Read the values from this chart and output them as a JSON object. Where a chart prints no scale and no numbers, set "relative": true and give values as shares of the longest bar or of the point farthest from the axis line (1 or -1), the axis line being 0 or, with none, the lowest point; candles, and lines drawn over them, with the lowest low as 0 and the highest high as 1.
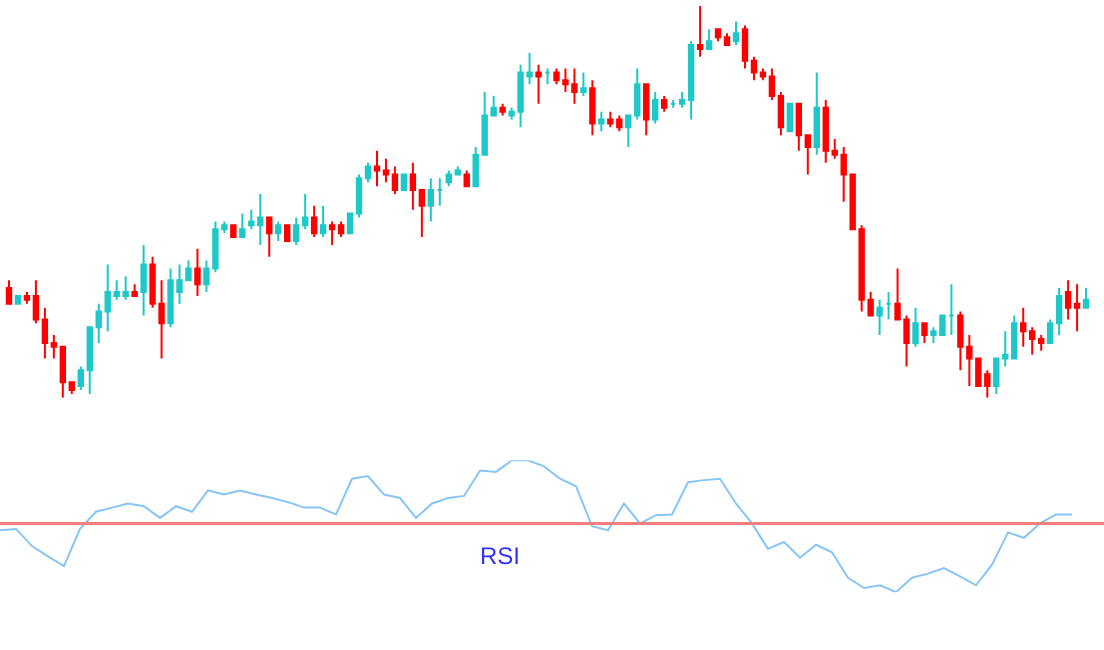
{
  "chart_data": [
    {
      "type": "candlestick",
      "relative": true,
      "categories": [
        null,
        null,
        null,
        null,
        null,
        null,
        null,
        null,
        null,
        null,
        null,
        null,
        null,
        null,
        null,
        null,
        null,
        null,
        null,
        null,
        null,
        null,
        null,
        null,
        null,
        null,
        null,
        null,
        null,
        null,
        null,
        null,
        null,
        null,
        null,
        null,
        null,
        null,
        null,
        null,
        null,
        null,
        null,
        null,
        null,
        null,
        null,
        null,
        null,
        null,
        null,
        null,
        null,
        null,
        null,
        null,
        null,
        null,
        null,
        null,
        null,
        null,
        null,
        null,
        null,
        null,
        null,
        null,
        null,
        null,
        null,
        null,
        null,
        null,
        null,
        null,
        null,
        null,
        null,
        null,
        null,
        null,
        null,
        null,
        null,
        null,
        null,
        null,
        null,
        null,
        null,
        null,
        null,
        null,
        null,
        null,
        null,
        null,
        null,
        null,
        null,
        null,
        null,
        null,
        null,
        null,
        null,
        null,
        null,
        null,
        null,
        null,
        null,
        null,
        null,
        null,
        null,
        null,
        null,
        null,
        null
      ],
      "ohlc": [
        [
          0.28,
          0.3,
          0.24,
          0.24
        ],
        [
          0.24,
          0.26,
          0.24,
          0.26
        ],
        [
          0.26,
          0.27,
          0.24,
          0.25
        ],
        [
          0.26,
          0.3,
          0.19,
          0.2
        ],
        [
          0.2,
          0.23,
          0.1,
          0.14
        ],
        [
          0.14,
          0.16,
          0.1,
          0.13
        ],
        [
          0.13,
          0.13,
          0,
          0.04
        ],
        [
          0.04,
          0.04,
          0.01,
          0.02
        ],
        [
          0.03,
          0.08,
          0.02,
          0.07
        ],
        [
          0.07,
          0.18,
          0.01,
          0.18
        ],
        [
          0.18,
          0.24,
          0.14,
          0.22
        ],
        [
          0.22,
          0.34,
          0.17,
          0.27
        ],
        [
          0.26,
          0.3,
          0.25,
          0.27
        ],
        [
          0.26,
          0.31,
          0.25,
          0.27
        ],
        [
          0.27,
          0.29,
          0.26,
          0.26
        ],
        [
          0.27,
          0.39,
          0.21,
          0.34
        ],
        [
          0.34,
          0.36,
          0.23,
          0.24
        ],
        [
          0.24,
          0.3,
          0.1,
          0.19
        ],
        [
          0.19,
          0.33,
          0.18,
          0.3
        ],
        [
          0.27,
          0.34,
          0.24,
          0.3
        ],
        [
          0.3,
          0.35,
          0.3,
          0.33
        ],
        [
          0.33,
          0.38,
          0.26,
          0.29
        ],
        [
          0.29,
          0.35,
          0.27,
          0.33
        ],
        [
          0.33,
          0.45,
          0.32,
          0.43
        ],
        [
          0.43,
          0.45,
          0.42,
          0.44
        ],
        [
          0.44,
          0.44,
          0.41,
          0.41
        ],
        [
          0.41,
          0.47,
          0.41,
          0.43
        ],
        [
          0.44,
          0.48,
          0.43,
          0.45
        ],
        [
          0.44,
          0.52,
          0.39,
          0.46
        ],
        [
          0.46,
          0.46,
          0.36,
          0.42
        ],
        [
          0.42,
          0.45,
          0.4,
          0.44
        ],
        [
          0.44,
          0.44,
          0.4,
          0.4
        ],
        [
          0.4,
          0.46,
          0.39,
          0.44
        ],
        [
          0.44,
          0.52,
          0.43,
          0.46
        ],
        [
          0.46,
          0.49,
          0.41,
          0.42
        ],
        [
          0.42,
          0.49,
          0.41,
          0.44
        ],
        [
          0.44,
          0.45,
          0.39,
          0.43
        ],
        [
          0.44,
          0.45,
          0.41,
          0.42
        ],
        [
          0.42,
          0.47,
          0.42,
          0.47
        ],
        [
          0.47,
          0.57,
          0.46,
          0.56
        ],
        [
          0.56,
          0.6,
          0.55,
          0.59
        ],
        [
          0.59,
          0.63,
          0.54,
          0.58
        ],
        [
          0.58,
          0.61,
          0.55,
          0.57
        ],
        [
          0.57,
          0.59,
          0.52,
          0.53
        ],
        [
          0.53,
          0.57,
          0.53,
          0.57
        ],
        [
          0.57,
          0.6,
          0.48,
          0.53
        ],
        [
          0.53,
          0.53,
          0.41,
          0.49
        ],
        [
          0.49,
          0.56,
          0.45,
          0.53
        ],
        [
          0.53,
          0.56,
          0.49,
          0.53
        ],
        [
          0.55,
          0.58,
          0.54,
          0.57
        ],
        [
          0.57,
          0.59,
          0.57,
          0.58
        ],
        [
          0.57,
          0.58,
          0.54,
          0.54
        ],
        [
          0.54,
          0.64,
          0.54,
          0.62
        ],
        [
          0.62,
          0.78,
          0.62,
          0.72
        ],
        [
          0.72,
          0.77,
          0.72,
          0.74
        ],
        [
          0.74,
          0.75,
          0.72,
          0.73
        ],
        [
          0.72,
          0.74,
          0.71,
          0.73
        ],
        [
          0.73,
          0.85,
          0.69,
          0.83
        ],
        [
          0.82,
          0.88,
          0.8,
          0.83
        ],
        [
          0.83,
          0.85,
          0.75,
          0.82
        ],
        [
          0.83,
          0.84,
          0.8,
          0.83
        ],
        [
          0.83,
          0.84,
          0.8,
          0.81
        ],
        [
          0.81,
          0.84,
          0.78,
          0.8
        ],
        [
          0.8,
          0.84,
          0.75,
          0.78
        ],
        [
          0.78,
          0.83,
          0.77,
          0.79
        ],
        [
          0.79,
          0.81,
          0.67,
          0.7
        ],
        [
          0.7,
          0.73,
          0.68,
          0.71
        ],
        [
          0.71,
          0.73,
          0.69,
          0.7
        ],
        [
          0.71,
          0.72,
          0.68,
          0.69
        ],
        [
          0.69,
          0.72,
          0.64,
          0.72
        ],
        [
          0.72,
          0.84,
          0.71,
          0.8
        ],
        [
          0.8,
          0.8,
          0.67,
          0.71
        ],
        [
          0.71,
          0.78,
          0.7,
          0.76
        ],
        [
          0.76,
          0.77,
          0.73,
          0.74
        ],
        [
          0.75,
          0.76,
          0.74,
          0.75
        ],
        [
          0.75,
          0.78,
          0.74,
          0.76
        ],
        [
          0.76,
          0.91,
          0.71,
          0.9
        ],
        [
          0.9,
          1,
          0.87,
          0.89
        ],
        [
          0.89,
          0.94,
          0.89,
          0.91
        ],
        [
          0.94,
          0.94,
          0.91,
          0.92
        ],
        [
          0.92,
          0.93,
          0.9,
          0.9
        ],
        [
          0.91,
          0.96,
          0.9,
          0.93
        ],
        [
          0.94,
          0.95,
          0.84,
          0.86
        ],
        [
          0.86,
          0.87,
          0.81,
          0.83
        ],
        [
          0.83,
          0.84,
          0.81,
          0.82
        ],
        [
          0.82,
          0.84,
          0.76,
          0.77
        ],
        [
          0.77,
          0.78,
          0.67,
          0.69
        ],
        [
          0.68,
          0.75,
          0.68,
          0.75
        ],
        [
          0.75,
          0.75,
          0.63,
          0.67
        ],
        [
          0.67,
          0.67,
          0.57,
          0.64
        ],
        [
          0.64,
          0.83,
          0.62,
          0.74
        ],
        [
          0.74,
          0.76,
          0.6,
          0.63
        ],
        [
          0.63,
          0.66,
          0.61,
          0.62
        ],
        [
          0.62,
          0.64,
          0.5,
          0.57
        ],
        [
          0.57,
          0.57,
          0.43,
          0.43
        ],
        [
          0.43,
          0.44,
          0.22,
          0.25
        ],
        [
          0.25,
          0.27,
          0.21,
          0.21
        ],
        [
          0.21,
          0.25,
          0.16,
          0.23
        ],
        [
          0.24,
          0.27,
          0.2,
          0.24
        ],
        [
          0.24,
          0.33,
          0.2,
          0.2
        ],
        [
          0.2,
          0.21,
          0.08,
          0.14
        ],
        [
          0.14,
          0.23,
          0.13,
          0.19
        ],
        [
          0.19,
          0.19,
          0.14,
          0.16
        ],
        [
          0.16,
          0.18,
          0.14,
          0.17
        ],
        [
          0.16,
          0.21,
          0.16,
          0.21
        ],
        [
          0.21,
          0.29,
          0.16,
          0.21
        ],
        [
          0.21,
          0.22,
          0.07,
          0.13
        ],
        [
          0.13,
          0.16,
          0.03,
          0.1
        ],
        [
          0.1,
          0.1,
          0.03,
          0.03
        ],
        [
          0.06,
          0.07,
          0,
          0.03
        ],
        [
          0.03,
          0.1,
          0.01,
          0.1
        ],
        [
          0.1,
          0.17,
          0.08,
          0.11
        ],
        [
          0.1,
          0.21,
          0.1,
          0.19
        ],
        [
          0.19,
          0.23,
          0.13,
          0.17
        ],
        [
          0.17,
          0.18,
          0.11,
          0.15
        ],
        [
          0.15,
          0.16,
          0.12,
          0.14
        ],
        [
          0.14,
          0.2,
          0.14,
          0.19
        ],
        [
          0.19,
          0.28,
          0.16,
          0.26
        ],
        [
          0.27,
          0.3,
          0.2,
          0.23
        ],
        [
          0.24,
          0.29,
          0.17,
          0.23
        ],
        [
          0.23,
          0.28,
          0.23,
          0.25
        ]
      ],
      "colors": [
        "#ff0000",
        "#1ec8c8",
        "#ff0000",
        "#ff0000",
        "#ff0000",
        "#ff0000",
        "#ff0000",
        "#ff0000",
        "#1ec8c8",
        "#1ec8c8",
        "#1ec8c8",
        "#1ec8c8",
        "#1ec8c8",
        "#1ec8c8",
        "#ff0000",
        "#1ec8c8",
        "#ff0000",
        "#ff0000",
        "#1ec8c8",
        "#1ec8c8",
        "#1ec8c8",
        "#ff0000",
        "#1ec8c8",
        "#1ec8c8",
        "#1ec8c8",
        "#ff0000",
        "#1ec8c8",
        "#1ec8c8",
        "#1ec8c8",
        "#ff0000",
        "#1ec8c8",
        "#ff0000",
        "#1ec8c8",
        "#1ec8c8",
        "#ff0000",
        "#1ec8c8",
        "#ff0000",
        "#ff0000",
        "#1ec8c8",
        "#1ec8c8",
        "#1ec8c8",
        "#ff0000",
        "#ff0000",
        "#ff0000",
        "#1ec8c8",
        "#ff0000",
        "#ff0000",
        "#1ec8c8",
        "#1ec8c8",
        "#1ec8c8",
        "#1ec8c8",
        "#ff0000",
        "#1ec8c8",
        "#1ec8c8",
        "#1ec8c8",
        "#ff0000",
        "#1ec8c8",
        "#1ec8c8",
        "#1ec8c8",
        "#ff0000",
        "#1ec8c8",
        "#ff0000",
        "#ff0000",
        "#ff0000",
        "#1ec8c8",
        "#ff0000",
        "#1ec8c8",
        "#ff0000",
        "#ff0000",
        "#1ec8c8",
        "#1ec8c8",
        "#ff0000",
        "#1ec8c8",
        "#ff0000",
        "#1ec8c8",
        "#1ec8c8",
        "#1ec8c8",
        "#ff0000",
        "#1ec8c8",
        "#ff0000",
        "#ff0000",
        "#1ec8c8",
        "#ff0000",
        "#ff0000",
        "#ff0000",
        "#ff0000",
        "#ff0000",
        "#1ec8c8",
        "#ff0000",
        "#ff0000",
        "#1ec8c8",
        "#ff0000",
        "#ff0000",
        "#ff0000",
        "#ff0000",
        "#ff0000",
        "#ff0000",
        "#1ec8c8",
        "#1ec8c8",
        "#ff0000",
        "#ff0000",
        "#1ec8c8",
        "#ff0000",
        "#1ec8c8",
        "#1ec8c8",
        "#1ec8c8",
        "#ff0000",
        "#ff0000",
        "#ff0000",
        "#ff0000",
        "#1ec8c8",
        "#1ec8c8",
        "#1ec8c8",
        "#ff0000",
        "#ff0000",
        "#ff0000",
        "#1ec8c8",
        "#1ec8c8",
        "#ff0000",
        "#ff0000",
        "#1ec8c8"
      ]
    },
    {
      "type": "line",
      "relative": true,
      "categories": [
        null,
        null,
        null,
        null,
        null,
        null,
        null,
        null,
        null,
        null,
        null,
        null,
        null,
        null,
        null,
        null,
        null,
        null,
        null,
        null,
        null,
        null,
        null,
        null,
        null,
        null,
        null,
        null,
        null,
        null,
        null,
        null,
        null,
        null,
        null,
        null,
        null,
        null,
        null,
        null,
        null,
        null,
        null,
        null,
        null,
        null,
        null,
        null,
        null,
        null,
        null,
        null,
        null,
        null,
        null,
        null,
        null,
        null,
        null,
        null,
        null,
        null,
        null,
        null,
        null,
        null,
        null,
        null
      ],
      "series": [
        {
          "color": "#87c5f5",
          "values": [
            -0.1,
            -0.08,
            -0.33,
            -0.48,
            -0.62,
            -0.08,
            0.17,
            0.23,
            0.29,
            0.25,
            0.08,
            0.25,
            0.17,
            0.48,
            0.42,
            0.48,
            0.42,
            0.37,
            0.31,
            0.23,
            0.23,
            0.13,
            0.65,
            0.69,
            0.42,
            0.37,
            0.08,
            0.29,
            0.37,
            0.4,
            0.77,
            0.75,
            0.92,
            0.92,
            0.83,
            0.65,
            0.54,
            -0.04,
            -0.1,
            0.29,
            0,
            0.12,
            0.13,
            0.6,
            0.63,
            0.65,
            0.29,
            0,
            -0.37,
            -0.27,
            -0.5,
            -0.31,
            -0.42,
            -0.79,
            -0.94,
            -0.9,
            -1,
            -0.79,
            -0.73,
            -0.65,
            -0.77,
            -0.9,
            -0.6,
            -0.13,
            -0.21,
            0,
            0.13,
            0.13
          ]
        }
      ],
      "ref_lines": [
        {
          "axis": "y",
          "value": 0,
          "color": "#f08080"
        }
      ],
      "annotations": [
        "RSI"
      ]
    }
  ]
}
